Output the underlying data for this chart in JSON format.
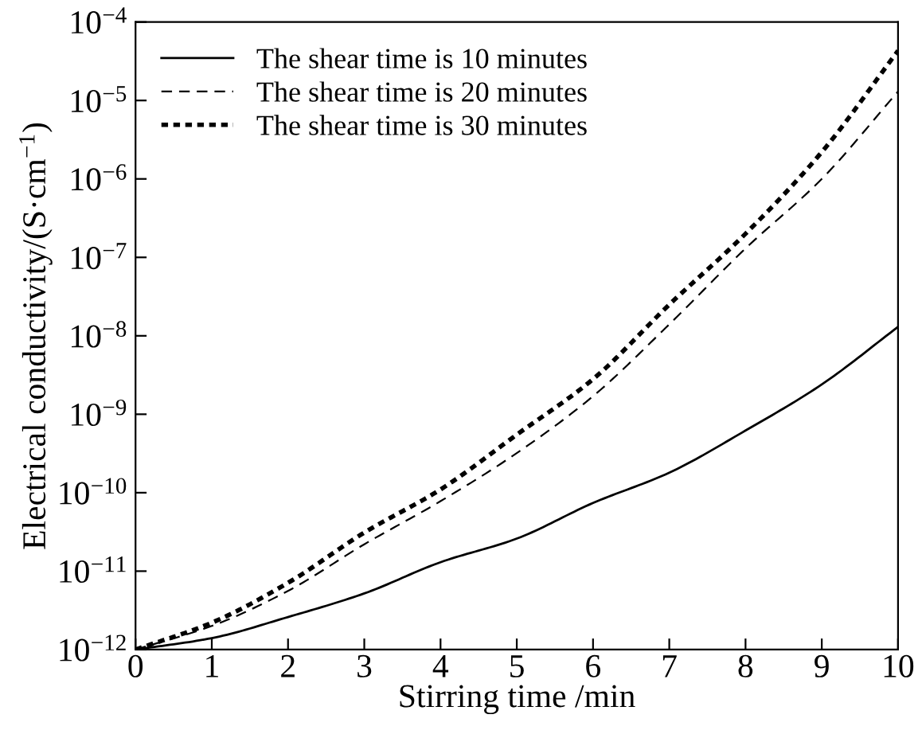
{
  "chart_data": {
    "type": "line",
    "xlabel": "Stirring time /min",
    "ylabel": "Electrical conductivity/(S·cm$^{−1}$)",
    "x": [
      0,
      1,
      2,
      3,
      4,
      5,
      6,
      7,
      8,
      9,
      10
    ],
    "series": [
      {
        "name": "The shear time is 10 minutes",
        "color": "#000000",
        "line_style": "solid",
        "values": [
          1e-12,
          1.4e-12,
          2.6e-12,
          5.2e-12,
          1.3e-11,
          2.6e-11,
          7.4e-11,
          1.8e-10,
          6.2e-10,
          2.4e-09,
          1.3e-08
        ]
      },
      {
        "name": "The shear time is 20 minutes",
        "color": "#000000",
        "line_style": "dashed",
        "values": [
          1e-12,
          2e-12,
          5.6e-12,
          2.2e-11,
          7.8e-11,
          3.2e-10,
          1.7e-09,
          1.4e-08,
          1.3e-07,
          1e-06,
          1.3e-05
        ]
      },
      {
        "name": "The shear time is 30 minutes",
        "color": "#000000",
        "line_style": "dotted",
        "values": [
          1e-12,
          2.2e-12,
          7.1e-12,
          3.1e-11,
          1.1e-10,
          5.5e-10,
          2.8e-09,
          2.5e-08,
          2e-07,
          2.2e-06,
          4.3e-05
        ]
      }
    ],
    "log": "y",
    "xlim": [
      0,
      10
    ],
    "xticks": [
      0,
      1,
      2,
      3,
      4,
      5,
      6,
      7,
      8,
      9,
      10
    ],
    "ylim": [
      1e-12,
      0.0001
    ],
    "yticks": [
      {
        "value": 1e-12,
        "label": "10$^{−12}$"
      },
      {
        "value": 1e-11,
        "label": "10$^{−11}$"
      },
      {
        "value": 1e-10,
        "label": "10$^{−10}$"
      },
      {
        "value": 1e-09,
        "label": "10$^{−9}$"
      },
      {
        "value": 1e-08,
        "label": "10$^{−8}$"
      },
      {
        "value": 1e-07,
        "label": "10$^{−7}$"
      },
      {
        "value": 1e-06,
        "label": "10$^{−6}$"
      },
      {
        "value": 1e-05,
        "label": "10$^{−5}$"
      },
      {
        "value": 0.0001,
        "label": "10$^{−4}$"
      }
    ],
    "grid": false,
    "legend": "top left",
    "marker": "none"
  }
}
